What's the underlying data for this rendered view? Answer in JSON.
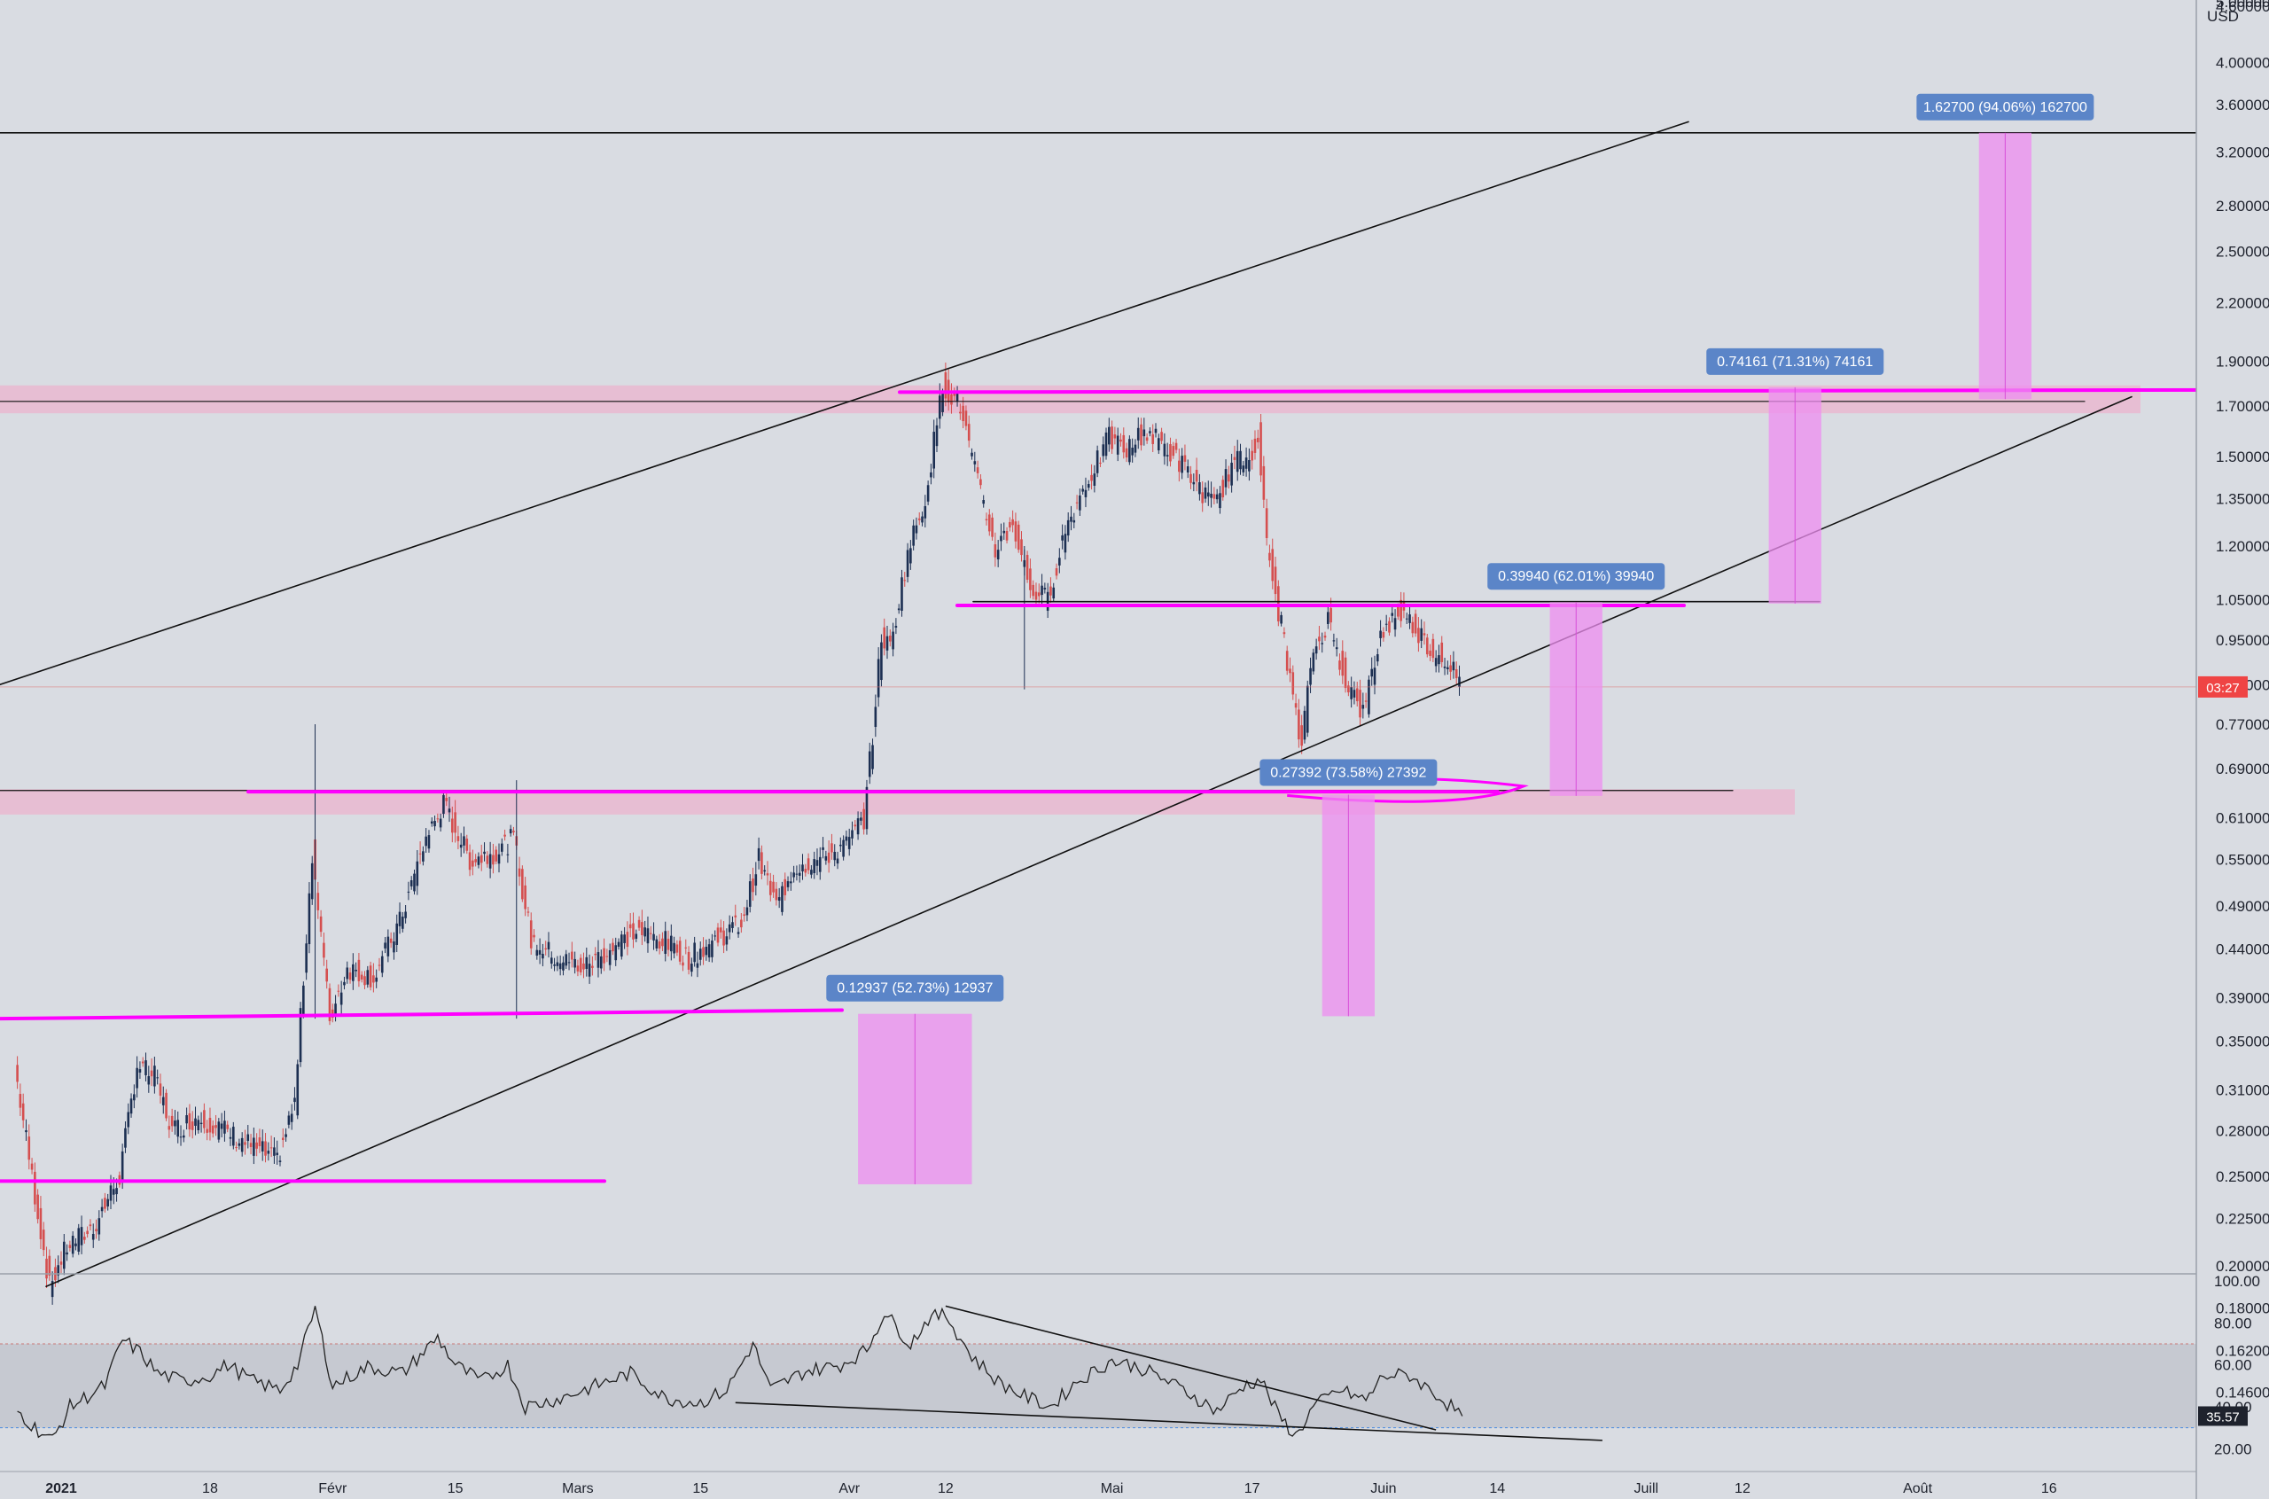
{
  "chart_data": [
    {
      "type": "candlestick",
      "currency": "USD",
      "scale": "log",
      "ylim": [
        0.135,
        5.0
      ],
      "price_ticks": [
        "4.60000",
        "4.00000",
        "3.60000",
        "3.20000",
        "2.80000",
        "2.50000",
        "2.20000",
        "1.90000",
        "1.70000",
        "1.50000",
        "1.35000",
        "1.20000",
        "1.05000",
        "0.95000",
        "0.85000",
        "0.77000",
        "0.69000",
        "0.61000",
        "0.55000",
        "0.49000",
        "0.44000",
        "0.39000",
        "0.35000",
        "0.31000",
        "0.28000",
        "0.25000",
        "0.22500",
        "0.20000",
        "0.18000",
        "0.16200",
        "0.14600"
      ],
      "price_tick_values": [
        4.6,
        4.0,
        3.6,
        3.2,
        2.8,
        2.5,
        2.2,
        1.9,
        1.7,
        1.5,
        1.35,
        1.2,
        1.05,
        0.95,
        0.85,
        0.77,
        0.69,
        0.61,
        0.55,
        0.49,
        0.44,
        0.39,
        0.35,
        0.31,
        0.28,
        0.25,
        0.225,
        0.2,
        0.18,
        0.162,
        0.146
      ],
      "top_tick_partial": "5.00000",
      "time_ticks": [
        {
          "label": "2021",
          "date": "2021-01-01",
          "bold": true
        },
        {
          "label": "18",
          "date": "2021-01-18"
        },
        {
          "label": "Févr",
          "date": "2021-02-01"
        },
        {
          "label": "15",
          "date": "2021-02-15"
        },
        {
          "label": "Mars",
          "date": "2021-03-01"
        },
        {
          "label": "15",
          "date": "2021-03-15"
        },
        {
          "label": "Avr",
          "date": "2021-04-01"
        },
        {
          "label": "12",
          "date": "2021-04-12"
        },
        {
          "label": "Mai",
          "date": "2021-05-01"
        },
        {
          "label": "17",
          "date": "2021-05-17"
        },
        {
          "label": "Juin",
          "date": "2021-06-01"
        },
        {
          "label": "14",
          "date": "2021-06-14"
        },
        {
          "label": "Juill",
          "date": "2021-07-01"
        },
        {
          "label": "12",
          "date": "2021-07-12"
        },
        {
          "label": "Août",
          "date": "2021-08-01"
        },
        {
          "label": "16",
          "date": "2021-08-16"
        }
      ],
      "current_price_badge": "03:27",
      "current_price": 0.845,
      "price_path": [
        {
          "date": "2020-12-27",
          "price": 0.33
        },
        {
          "date": "2020-12-29",
          "price": 0.25
        },
        {
          "date": "2020-12-31",
          "price": 0.19
        },
        {
          "date": "2021-01-02",
          "price": 0.21
        },
        {
          "date": "2021-01-05",
          "price": 0.22
        },
        {
          "date": "2021-01-08",
          "price": 0.25
        },
        {
          "date": "2021-01-10",
          "price": 0.33
        },
        {
          "date": "2021-01-12",
          "price": 0.32
        },
        {
          "date": "2021-01-14",
          "price": 0.28
        },
        {
          "date": "2021-01-17",
          "price": 0.29
        },
        {
          "date": "2021-01-20",
          "price": 0.28
        },
        {
          "date": "2021-01-23",
          "price": 0.27
        },
        {
          "date": "2021-01-26",
          "price": 0.26
        },
        {
          "date": "2021-01-28",
          "price": 0.3
        },
        {
          "date": "2021-01-30",
          "price": 0.56
        },
        {
          "date": "2021-02-01",
          "price": 0.37
        },
        {
          "date": "2021-02-03",
          "price": 0.42
        },
        {
          "date": "2021-02-06",
          "price": 0.41
        },
        {
          "date": "2021-02-09",
          "price": 0.47
        },
        {
          "date": "2021-02-12",
          "price": 0.58
        },
        {
          "date": "2021-02-14",
          "price": 0.63
        },
        {
          "date": "2021-02-17",
          "price": 0.55
        },
        {
          "date": "2021-02-20",
          "price": 0.56
        },
        {
          "date": "2021-02-22",
          "price": 0.58
        },
        {
          "date": "2021-02-24",
          "price": 0.45
        },
        {
          "date": "2021-02-27",
          "price": 0.43
        },
        {
          "date": "2021-03-02",
          "price": 0.42
        },
        {
          "date": "2021-03-05",
          "price": 0.44
        },
        {
          "date": "2021-03-08",
          "price": 0.46
        },
        {
          "date": "2021-03-11",
          "price": 0.45
        },
        {
          "date": "2021-03-14",
          "price": 0.43
        },
        {
          "date": "2021-03-17",
          "price": 0.45
        },
        {
          "date": "2021-03-20",
          "price": 0.47
        },
        {
          "date": "2021-03-22",
          "price": 0.55
        },
        {
          "date": "2021-03-24",
          "price": 0.49
        },
        {
          "date": "2021-03-26",
          "price": 0.54
        },
        {
          "date": "2021-03-29",
          "price": 0.55
        },
        {
          "date": "2021-04-01",
          "price": 0.57
        },
        {
          "date": "2021-04-03",
          "price": 0.61
        },
        {
          "date": "2021-04-04",
          "price": 0.75
        },
        {
          "date": "2021-04-05",
          "price": 0.96
        },
        {
          "date": "2021-04-06",
          "price": 0.93
        },
        {
          "date": "2021-04-08",
          "price": 1.18
        },
        {
          "date": "2021-04-10",
          "price": 1.35
        },
        {
          "date": "2021-04-12",
          "price": 1.79
        },
        {
          "date": "2021-04-14",
          "price": 1.7
        },
        {
          "date": "2021-04-16",
          "price": 1.4
        },
        {
          "date": "2021-04-18",
          "price": 1.19
        },
        {
          "date": "2021-04-20",
          "price": 1.27
        },
        {
          "date": "2021-04-22",
          "price": 1.08
        },
        {
          "date": "2021-04-24",
          "price": 1.05
        },
        {
          "date": "2021-04-26",
          "price": 1.25
        },
        {
          "date": "2021-04-28",
          "price": 1.38
        },
        {
          "date": "2021-05-01",
          "price": 1.57
        },
        {
          "date": "2021-05-03",
          "price": 1.52
        },
        {
          "date": "2021-05-05",
          "price": 1.6
        },
        {
          "date": "2021-05-07",
          "price": 1.55
        },
        {
          "date": "2021-05-09",
          "price": 1.48
        },
        {
          "date": "2021-05-11",
          "price": 1.4
        },
        {
          "date": "2021-05-13",
          "price": 1.32
        },
        {
          "date": "2021-05-15",
          "price": 1.47
        },
        {
          "date": "2021-05-17",
          "price": 1.5
        },
        {
          "date": "2021-05-18",
          "price": 1.58
        },
        {
          "date": "2021-05-19",
          "price": 1.2
        },
        {
          "date": "2021-05-20",
          "price": 1.06
        },
        {
          "date": "2021-05-21",
          "price": 0.95
        },
        {
          "date": "2021-05-22",
          "price": 0.82
        },
        {
          "date": "2021-05-23",
          "price": 0.72
        },
        {
          "date": "2021-05-24",
          "price": 0.9
        },
        {
          "date": "2021-05-26",
          "price": 1.0
        },
        {
          "date": "2021-05-28",
          "price": 0.86
        },
        {
          "date": "2021-05-30",
          "price": 0.79
        },
        {
          "date": "2021-06-01",
          "price": 0.96
        },
        {
          "date": "2021-06-03",
          "price": 1.02
        },
        {
          "date": "2021-06-05",
          "price": 0.98
        },
        {
          "date": "2021-06-07",
          "price": 0.92
        },
        {
          "date": "2021-06-09",
          "price": 0.9
        },
        {
          "date": "2021-06-10",
          "price": 0.845
        }
      ],
      "rsi": {
        "ylim": [
          10,
          100
        ],
        "ticks": [
          "100.00",
          "80.00",
          "60.00",
          "40.00",
          "20.00"
        ],
        "tick_values": [
          100,
          80,
          60,
          40,
          20
        ],
        "band": [
          30,
          70
        ],
        "current_label": "35.57",
        "current_value": 35.57,
        "path": [
          {
            "date": "2020-12-27",
            "value": 38
          },
          {
            "date": "2020-12-29",
            "value": 30
          },
          {
            "date": "2020-12-31",
            "value": 24
          },
          {
            "date": "2021-01-02",
            "value": 40
          },
          {
            "date": "2021-01-06",
            "value": 50
          },
          {
            "date": "2021-01-08",
            "value": 72
          },
          {
            "date": "2021-01-10",
            "value": 66
          },
          {
            "date": "2021-01-12",
            "value": 56
          },
          {
            "date": "2021-01-15",
            "value": 52
          },
          {
            "date": "2021-01-18",
            "value": 55
          },
          {
            "date": "2021-01-20",
            "value": 60
          },
          {
            "date": "2021-01-23",
            "value": 52
          },
          {
            "date": "2021-01-26",
            "value": 48
          },
          {
            "date": "2021-01-28",
            "value": 60
          },
          {
            "date": "2021-01-30",
            "value": 87
          },
          {
            "date": "2021-02-01",
            "value": 50
          },
          {
            "date": "2021-02-05",
            "value": 59
          },
          {
            "date": "2021-02-09",
            "value": 56
          },
          {
            "date": "2021-02-13",
            "value": 73
          },
          {
            "date": "2021-02-15",
            "value": 60
          },
          {
            "date": "2021-02-18",
            "value": 52
          },
          {
            "date": "2021-02-21",
            "value": 60
          },
          {
            "date": "2021-02-23",
            "value": 40
          },
          {
            "date": "2021-02-27",
            "value": 44
          },
          {
            "date": "2021-03-03",
            "value": 50
          },
          {
            "date": "2021-03-07",
            "value": 56
          },
          {
            "date": "2021-03-11",
            "value": 44
          },
          {
            "date": "2021-03-15",
            "value": 42
          },
          {
            "date": "2021-03-18",
            "value": 48
          },
          {
            "date": "2021-03-21",
            "value": 70
          },
          {
            "date": "2021-03-23",
            "value": 48
          },
          {
            "date": "2021-03-27",
            "value": 57
          },
          {
            "date": "2021-03-31",
            "value": 60
          },
          {
            "date": "2021-04-03",
            "value": 67
          },
          {
            "date": "2021-04-05",
            "value": 85
          },
          {
            "date": "2021-04-08",
            "value": 70
          },
          {
            "date": "2021-04-10",
            "value": 82
          },
          {
            "date": "2021-04-12",
            "value": 84
          },
          {
            "date": "2021-04-15",
            "value": 64
          },
          {
            "date": "2021-04-18",
            "value": 52
          },
          {
            "date": "2021-04-21",
            "value": 45
          },
          {
            "date": "2021-04-24",
            "value": 40
          },
          {
            "date": "2021-04-27",
            "value": 52
          },
          {
            "date": "2021-05-01",
            "value": 62
          },
          {
            "date": "2021-05-04",
            "value": 59
          },
          {
            "date": "2021-05-07",
            "value": 53
          },
          {
            "date": "2021-05-10",
            "value": 46
          },
          {
            "date": "2021-05-13",
            "value": 38
          },
          {
            "date": "2021-05-16",
            "value": 50
          },
          {
            "date": "2021-05-18",
            "value": 53
          },
          {
            "date": "2021-05-20",
            "value": 36
          },
          {
            "date": "2021-05-22",
            "value": 26
          },
          {
            "date": "2021-05-24",
            "value": 40
          },
          {
            "date": "2021-05-27",
            "value": 48
          },
          {
            "date": "2021-05-30",
            "value": 43
          },
          {
            "date": "2021-06-01",
            "value": 55
          },
          {
            "date": "2021-06-04",
            "value": 55
          },
          {
            "date": "2021-06-07",
            "value": 46
          },
          {
            "date": "2021-06-10",
            "value": 35.57
          }
        ]
      }
    }
  ],
  "annotations": {
    "measures": [
      {
        "label": "0.12937 (52.73%) 12937",
        "from": 0.245,
        "to": 0.3745,
        "date_start": "2021-04-02",
        "date_end": "2021-04-15"
      },
      {
        "label": "0.27392 (73.58%) 27392",
        "from": 0.3723,
        "to": 0.6462,
        "date_start": "2021-05-25",
        "date_end": "2021-05-31"
      },
      {
        "label": "0.39940 (62.01%) 39940",
        "from": 0.6443,
        "to": 1.0437,
        "date_start": "2021-06-20",
        "date_end": "2021-06-26"
      },
      {
        "label": "0.74161 (71.31%) 74161",
        "from": 1.04,
        "to": 1.7816,
        "date_start": "2021-07-15",
        "date_end": "2021-07-21"
      },
      {
        "label": "1.62700 (94.06%) 162700",
        "from": 1.73,
        "to": 3.357,
        "date_start": "2021-08-08",
        "date_end": "2021-08-14"
      }
    ]
  },
  "colors": {
    "background": "#d9dce2",
    "axis_text": "#1e222d",
    "magenta_line": "#ff00ff",
    "zone_fill": "#f2a6c6",
    "measure_fill": "#ee8ef0",
    "measure_badge": "#5b85c8",
    "up_candle": "#1c2f52",
    "down_candle": "#d54f4f",
    "price_badge": "#ef4444",
    "rsi_line": "#222222"
  }
}
